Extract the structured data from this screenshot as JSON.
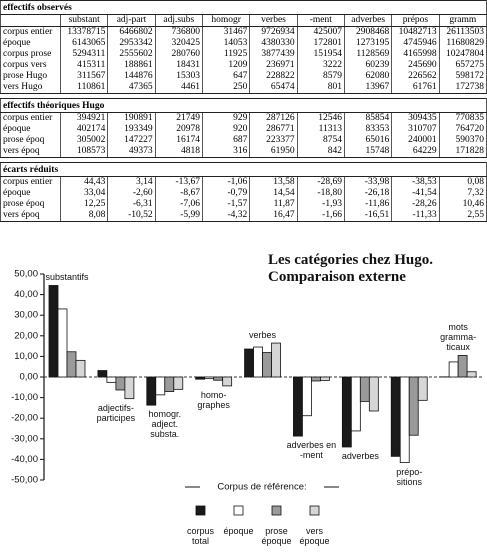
{
  "tables": [
    {
      "title": "effectifs observés",
      "columns": [
        "substant",
        "adj-part",
        "adj.subs",
        "homogr",
        "verbes",
        "-ment",
        "adverbes",
        "prépos",
        "gramm"
      ],
      "rows": [
        {
          "label": "corpus entier",
          "cells": [
            "13378715",
            "6466802",
            "736800",
            "31467",
            "9726934",
            "425007",
            "2908468",
            "10482713",
            "26113503"
          ]
        },
        {
          "label": "époque",
          "cells": [
            "6143065",
            "2953342",
            "320425",
            "14053",
            "4380330",
            "172801",
            "1273195",
            "4745946",
            "11680829"
          ]
        },
        {
          "label": "corpus prose",
          "cells": [
            "5294311",
            "2555602",
            "280760",
            "11925",
            "3877439",
            "151954",
            "1128569",
            "4165998",
            "10247804"
          ]
        },
        {
          "label": "corpus vers",
          "cells": [
            "415311",
            "188861",
            "18431",
            "1209",
            "236971",
            "3222",
            "60239",
            "245690",
            "657275"
          ]
        },
        {
          "label": "prose Hugo",
          "cells": [
            "311567",
            "144876",
            "15303",
            "647",
            "228822",
            "8579",
            "62080",
            "226562",
            "598172"
          ]
        },
        {
          "label": "vers Hugo",
          "cells": [
            "110861",
            "47365",
            "4461",
            "250",
            "65474",
            "801",
            "13967",
            "61761",
            "172738"
          ]
        }
      ]
    },
    {
      "title": "effectifs théoriques Hugo",
      "rows": [
        {
          "label": "corpus entier",
          "cells": [
            "394921",
            "190891",
            "21749",
            "929",
            "287126",
            "12546",
            "85854",
            "309435",
            "770835"
          ]
        },
        {
          "label": "époque",
          "cells": [
            "402174",
            "193349",
            "20978",
            "920",
            "286771",
            "11313",
            "83353",
            "310707",
            "764720"
          ]
        },
        {
          "label": "prose époq",
          "cells": [
            "305002",
            "147227",
            "16174",
            "687",
            "223377",
            "8754",
            "65016",
            "240001",
            "590370"
          ]
        },
        {
          "label": "vers époq",
          "cells": [
            "108573",
            "49373",
            "4818",
            "316",
            "61950",
            "842",
            "15748",
            "64229",
            "171828"
          ]
        }
      ]
    },
    {
      "title": "écarts réduits",
      "rows": [
        {
          "label": "corpus entier",
          "cells": [
            "44,43",
            "3,14",
            "-13,67",
            "-1,06",
            "13,58",
            "-28,69",
            "-33,98",
            "-38,53",
            "0,08"
          ]
        },
        {
          "label": "époque",
          "cells": [
            "33,04",
            "-2,60",
            "-8,67",
            "-0,79",
            "14,54",
            "-18,80",
            "-26,18",
            "-41,54",
            "7,32"
          ]
        },
        {
          "label": "prose époq",
          "cells": [
            "12,25",
            "-6,31",
            "-7,06",
            "-1,57",
            "11,87",
            "-1,93",
            "-11,86",
            "-28,26",
            "10,46"
          ]
        },
        {
          "label": "vers époq",
          "cells": [
            "8,08",
            "-10,52",
            "-5,99",
            "-4,32",
            "16,47",
            "-1,66",
            "-16,51",
            "-11,33",
            "2,55"
          ]
        }
      ]
    }
  ],
  "chart_data": {
    "type": "bar",
    "title": "Les catégories chez Hugo. Comparaison externe",
    "categories": [
      "substantifs",
      "adjectifs-participes",
      "homogr. adject. substa.",
      "homo-graphes",
      "verbes",
      "adverbes en -ment",
      "adverbes",
      "prépo-sitions",
      "mots gramma-ticaux"
    ],
    "legend_title": "Corpus de référence:",
    "series": [
      {
        "name": "corpus total",
        "color": "#1a1a1a",
        "values": [
          44.43,
          3.14,
          -13.67,
          -1.06,
          13.58,
          -28.69,
          -33.98,
          -38.53,
          0.08
        ]
      },
      {
        "name": "époque",
        "color": "#ffffff",
        "values": [
          33.04,
          -2.6,
          -8.67,
          -0.79,
          14.54,
          -18.8,
          -26.18,
          -41.54,
          7.32
        ]
      },
      {
        "name": "prose époque",
        "color": "#9a9a9a",
        "values": [
          12.25,
          -6.31,
          -7.06,
          -1.57,
          11.87,
          -1.93,
          -11.86,
          -28.26,
          10.46
        ]
      },
      {
        "name": "vers époque",
        "color": "#d6d6d6",
        "values": [
          8.08,
          -10.52,
          -5.99,
          -4.32,
          16.47,
          -1.66,
          -16.51,
          -11.33,
          2.55
        ]
      }
    ],
    "ylim": [
      -50,
      50
    ],
    "yticks": [
      {
        "value": -50,
        "label": "-50,00"
      },
      {
        "value": -40,
        "label": "-40,00"
      },
      {
        "value": -30,
        "label": "-30,00"
      },
      {
        "value": -20,
        "label": "-20,00"
      },
      {
        "value": -10,
        "label": "-10,00"
      },
      {
        "value": 0,
        "label": "0,00"
      },
      {
        "value": 10,
        "label": "10,00"
      },
      {
        "value": 20,
        "label": "20,00"
      },
      {
        "value": 30,
        "label": "30,00"
      },
      {
        "value": 40,
        "label": "40,00"
      },
      {
        "value": 50,
        "label": "50,00"
      }
    ]
  }
}
